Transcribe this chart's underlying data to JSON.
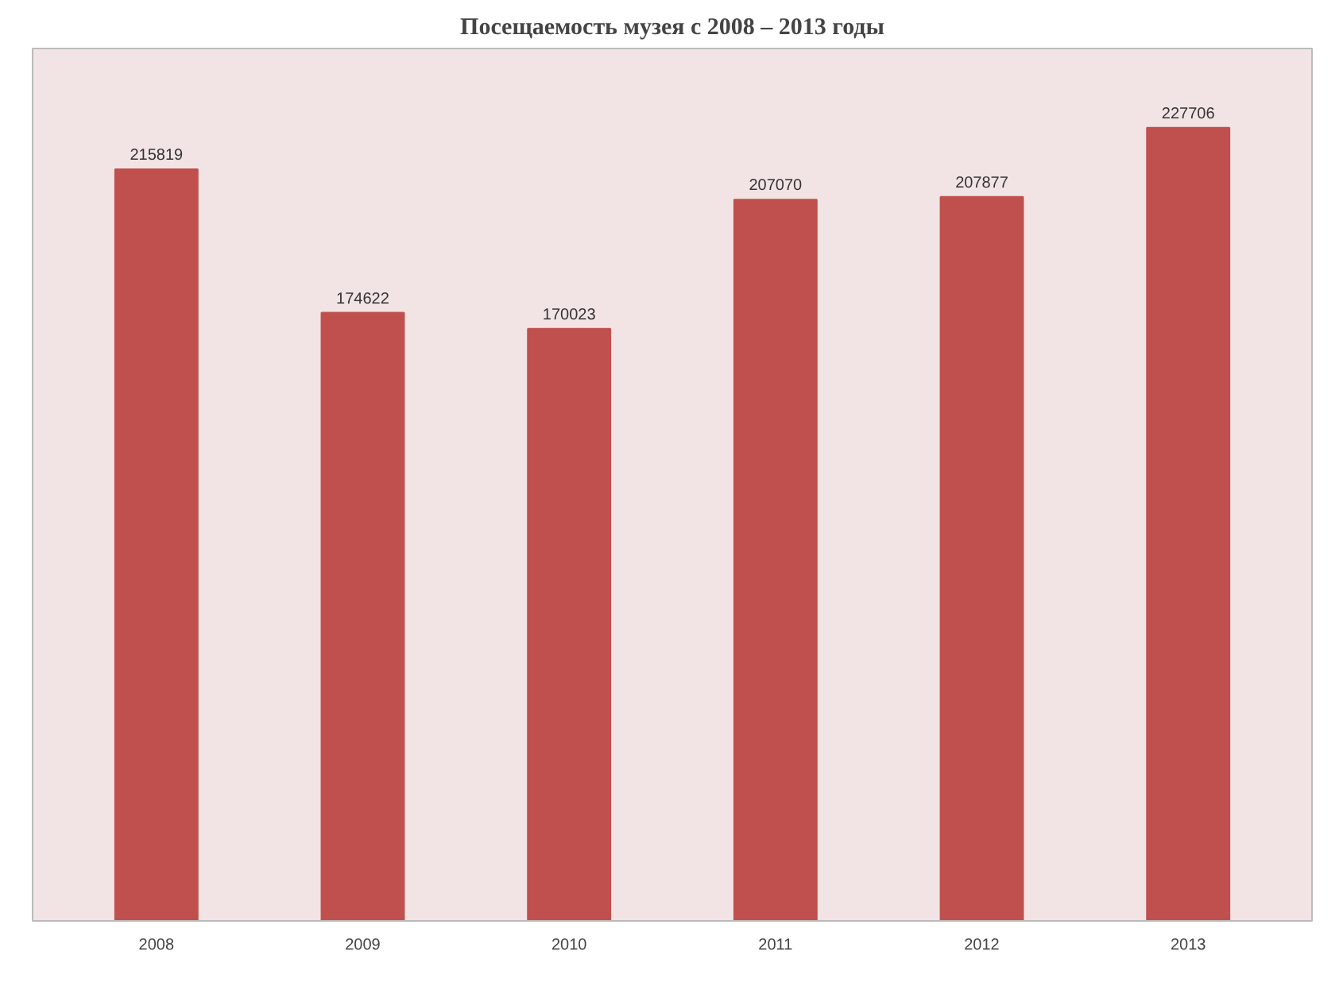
{
  "chart_data": {
    "type": "bar",
    "title": "Посещаемость музея с 2008 – 2013 годы",
    "categories": [
      "2008",
      "2009",
      "2010",
      "2011",
      "2012",
      "2013"
    ],
    "values": [
      215819,
      174622,
      170023,
      207070,
      207877,
      227706
    ],
    "color": "#c0504d",
    "data_labels": true,
    "grid": false
  }
}
